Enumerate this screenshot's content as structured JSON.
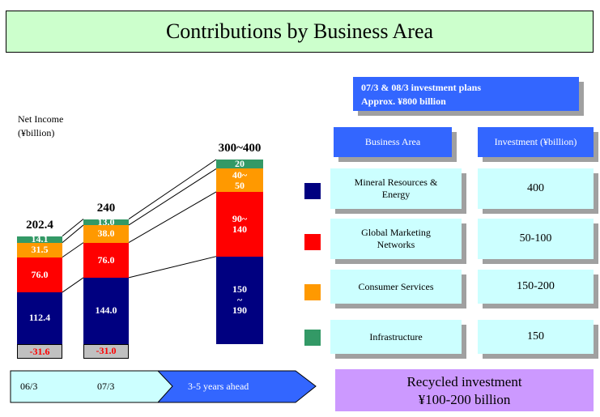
{
  "chart_data": {
    "type": "stacked_bar",
    "title": "Contributions by Business Area",
    "ylabel": [
      "Net Income",
      "(¥billion)"
    ],
    "categories": [
      "06/3",
      "07/3",
      "3-5 years ahead"
    ],
    "series": [
      {
        "name": "Mineral Resources & Energy",
        "color": "#000080",
        "label_color": "#ffffff",
        "values": [
          112.4,
          144.0,
          190
        ],
        "value_labels": [
          "112.4",
          "144.0",
          "150\n~\n190"
        ]
      },
      {
        "name": "Global Marketing Networks",
        "color": "#ff0000",
        "label_color": "#ffffff",
        "values": [
          76.0,
          76.0,
          140
        ],
        "value_labels": [
          "76.0",
          "76.0",
          "90~\n140"
        ]
      },
      {
        "name": "Consumer Services",
        "color": "#ff9900",
        "label_color": "#ffffff",
        "values": [
          31.5,
          38.0,
          50
        ],
        "value_labels": [
          "31.5",
          "38.0",
          "40~\n50"
        ]
      },
      {
        "name": "Infrastructure",
        "color": "#339966",
        "label_color": "#ffffff",
        "values": [
          14.1,
          13.0,
          20
        ],
        "value_labels": [
          "14.1",
          "13.0",
          "20"
        ]
      },
      {
        "color": "#c0c0c0",
        "label_color": "#ff0000",
        "values": [
          -31.6,
          -31.0,
          null
        ],
        "value_labels": [
          "-31.6",
          "-31.0",
          null
        ]
      }
    ],
    "totals": [
      202.4,
      240,
      400
    ],
    "total_labels": [
      "202.4",
      "240",
      "300~400"
    ],
    "table": {
      "header": [
        "07/3 & 08/3 investment plans",
        "Approx. ¥800 billion"
      ],
      "columns": [
        "Business Area",
        "Investment (¥billion)"
      ],
      "investment": [
        400,
        "50-100",
        "150-200",
        150
      ],
      "footer": [
        "Recycled investment",
        "¥100-200 billion"
      ]
    }
  }
}
